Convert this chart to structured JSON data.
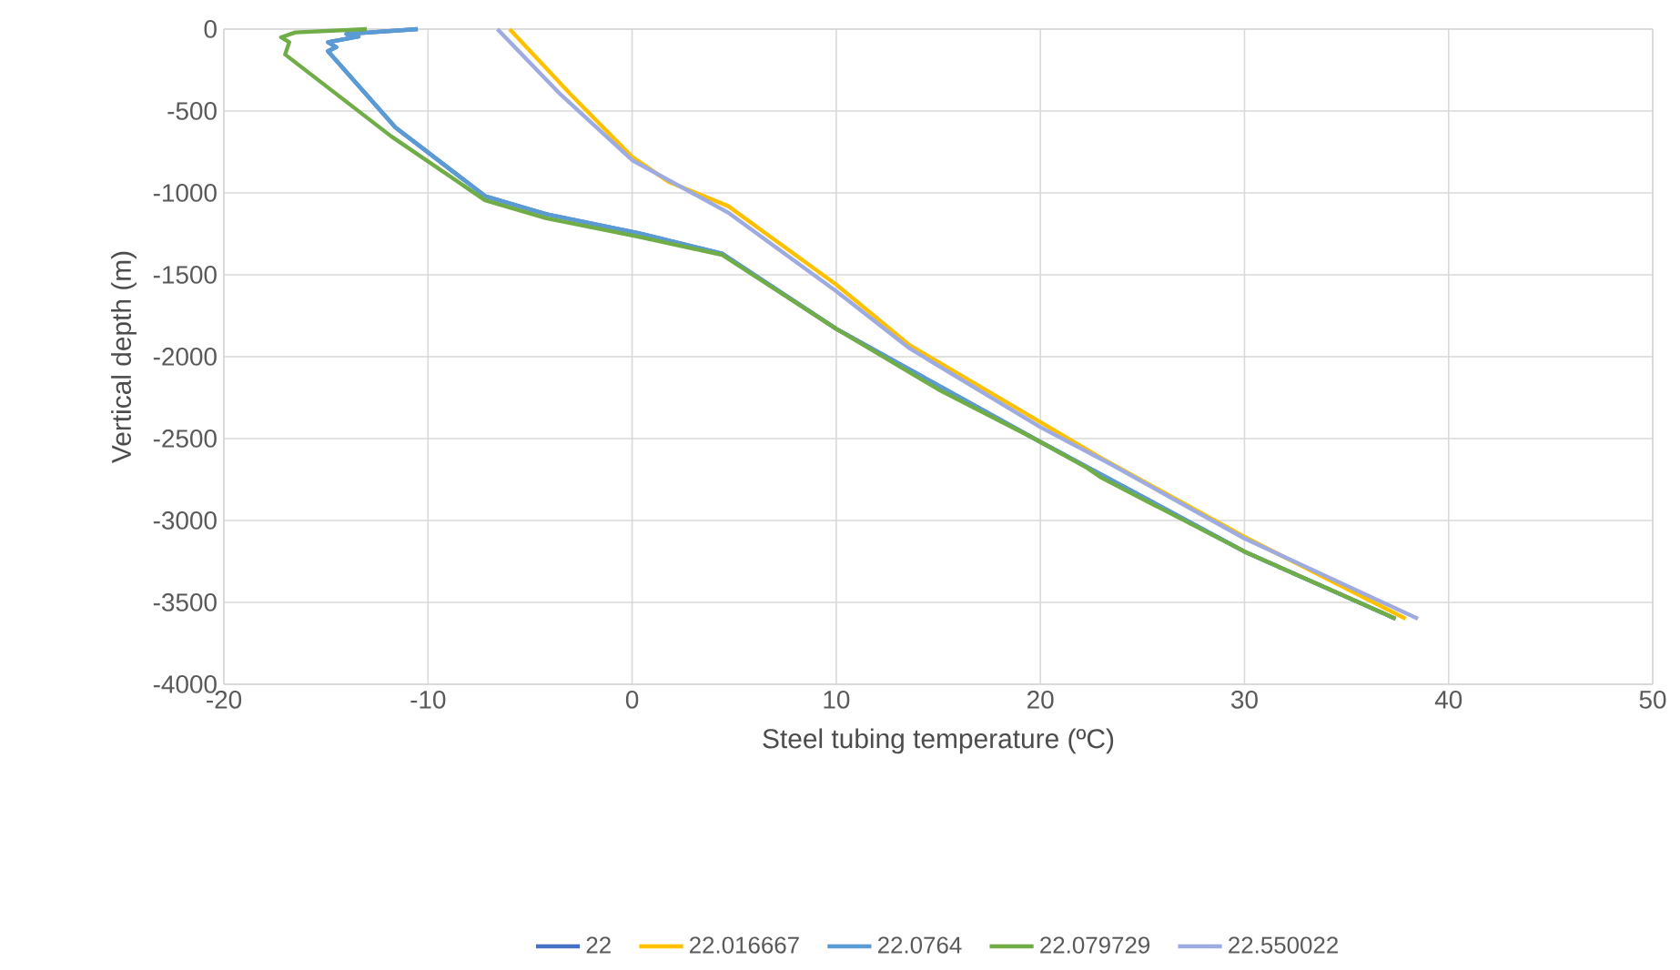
{
  "chart_data": {
    "type": "line",
    "xlabel": "Steel tubing temperature (ºC)",
    "ylabel": "Vertical depth (m)",
    "xlim": [
      -20,
      50
    ],
    "ylim": [
      -4000,
      0
    ],
    "xticks": [
      -20,
      -10,
      0,
      10,
      20,
      30,
      40,
      50
    ],
    "yticks": [
      -4000,
      -3500,
      -3000,
      -2500,
      -2000,
      -1500,
      -1000,
      -500,
      0
    ],
    "grid": true,
    "legend": "bottom",
    "series": [
      {
        "name": "22",
        "color": "#4472c4",
        "x": [
          -10.5,
          -14,
          -13.4,
          -14.9,
          -14.5,
          -14.9,
          -11.6,
          -7.2,
          -4.2,
          0.3,
          4.4,
          10,
          19.7,
          30,
          37.4
        ],
        "values": [
          0,
          -30,
          -45,
          -80,
          -110,
          -135,
          -600,
          -1020,
          -1130,
          -1245,
          -1370,
          -1830,
          -2500,
          -3190,
          -3600
        ]
      },
      {
        "name": "22.016667",
        "color": "#ffc000",
        "x": [
          -6,
          -3,
          0,
          1.8,
          4.7,
          10,
          13.6,
          20,
          23,
          30,
          37.9
        ],
        "values": [
          0,
          -400,
          -780,
          -933,
          -1080,
          -1560,
          -1930,
          -2400,
          -2620,
          -3100,
          -3600
        ]
      },
      {
        "name": "22.0764",
        "color": "#5b9bd5",
        "x": [
          -10.5,
          -14,
          -13.4,
          -14.9,
          -14.5,
          -14.9,
          -11.6,
          -7.2,
          -4.2,
          0.3,
          4.4,
          10,
          19.7,
          30,
          37.4
        ],
        "values": [
          0,
          -30,
          -45,
          -80,
          -110,
          -135,
          -600,
          -1020,
          -1130,
          -1245,
          -1370,
          -1830,
          -2500,
          -3190,
          -3600
        ]
      },
      {
        "name": "22.079729",
        "color": "#70ad47",
        "x": [
          -13,
          -16.5,
          -17.2,
          -16.8,
          -17,
          -11.8,
          -7.2,
          -4.2,
          0.3,
          4.4,
          10,
          15,
          19.7,
          22.3,
          23,
          30,
          37.4
        ],
        "values": [
          0,
          -20,
          -50,
          -80,
          -155,
          -655,
          -1045,
          -1155,
          -1267,
          -1378,
          -1830,
          -2200,
          -2500,
          -2680,
          -2740,
          -3190,
          -3600
        ]
      },
      {
        "name": "22.550022",
        "color": "#9dabe0",
        "x": [
          -6.6,
          -3.5,
          0,
          4.7,
          10,
          13.6,
          20,
          23.5,
          30,
          38.5
        ],
        "values": [
          0,
          -400,
          -800,
          -1120,
          -1600,
          -1950,
          -2430,
          -2660,
          -3110,
          -3600
        ]
      }
    ]
  }
}
